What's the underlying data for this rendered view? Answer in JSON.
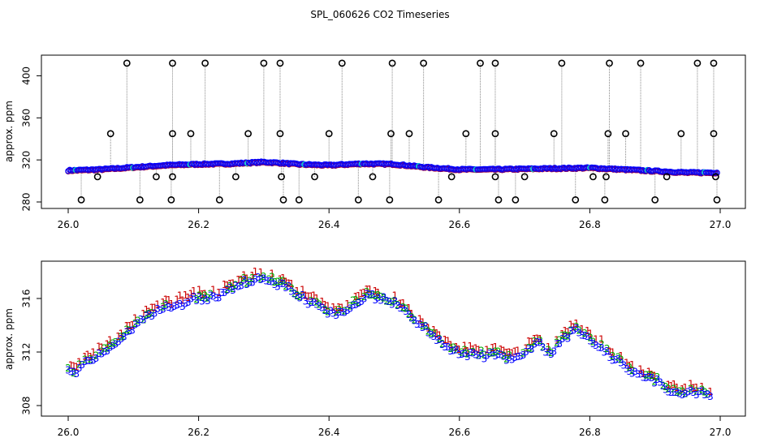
{
  "colors": {
    "series1": "#cc0000",
    "series2": "#00aa00",
    "series3": "#0000ff",
    "aux": "#00cccc",
    "spike": "#000000",
    "drop": "#888888"
  },
  "chart_data": [
    {
      "type": "scatter",
      "title": "SPL_060626  CO2 Timeseries",
      "xlabel": "",
      "ylabel": "approx. ppm",
      "xlim": [
        26.0,
        27.0
      ],
      "ylim": [
        280,
        415
      ],
      "xticks": [
        "26.0",
        "26.2",
        "26.4",
        "26.6",
        "26.8",
        "27.0"
      ],
      "yticks": [
        "280",
        "320",
        "360",
        "400"
      ],
      "baseline": [
        [
          26.0,
          310
        ],
        [
          26.05,
          311
        ],
        [
          26.1,
          313
        ],
        [
          26.15,
          315
        ],
        [
          26.2,
          316
        ],
        [
          26.25,
          316.5
        ],
        [
          26.3,
          318
        ],
        [
          26.33,
          317
        ],
        [
          26.35,
          316
        ],
        [
          26.4,
          315
        ],
        [
          26.45,
          316.5
        ],
        [
          26.5,
          316
        ],
        [
          26.55,
          313
        ],
        [
          26.6,
          311
        ],
        [
          26.65,
          311
        ],
        [
          26.7,
          311.5
        ],
        [
          26.75,
          312
        ],
        [
          26.8,
          312.5
        ],
        [
          26.85,
          311
        ],
        [
          26.9,
          309.5
        ],
        [
          26.95,
          308
        ],
        [
          26.99,
          308
        ]
      ],
      "outliers_high": [
        [
          26.09,
          412
        ],
        [
          26.16,
          412
        ],
        [
          26.21,
          412
        ],
        [
          26.3,
          412
        ],
        [
          26.325,
          412
        ],
        [
          26.42,
          412
        ],
        [
          26.497,
          412
        ],
        [
          26.545,
          412
        ],
        [
          26.632,
          412
        ],
        [
          26.655,
          412
        ],
        [
          26.757,
          412
        ],
        [
          26.83,
          412
        ],
        [
          26.878,
          412
        ],
        [
          26.965,
          412
        ],
        [
          26.99,
          412
        ]
      ],
      "outliers_mid": [
        [
          26.065,
          345
        ],
        [
          26.16,
          345
        ],
        [
          26.188,
          345
        ],
        [
          26.276,
          345
        ],
        [
          26.325,
          345
        ],
        [
          26.4,
          345
        ],
        [
          26.495,
          345
        ],
        [
          26.523,
          345
        ],
        [
          26.61,
          345
        ],
        [
          26.655,
          345
        ],
        [
          26.745,
          345
        ],
        [
          26.828,
          345
        ],
        [
          26.855,
          345
        ],
        [
          26.94,
          345
        ],
        [
          26.99,
          345
        ]
      ],
      "outliers_low": [
        [
          26.02,
          282
        ],
        [
          26.11,
          282
        ],
        [
          26.158,
          282
        ],
        [
          26.232,
          282
        ],
        [
          26.33,
          282
        ],
        [
          26.354,
          282
        ],
        [
          26.445,
          282
        ],
        [
          26.493,
          282
        ],
        [
          26.568,
          282
        ],
        [
          26.66,
          282
        ],
        [
          26.686,
          282
        ],
        [
          26.778,
          282
        ],
        [
          26.823,
          282
        ],
        [
          26.9,
          282
        ],
        [
          26.995,
          282
        ]
      ],
      "outliers_near": [
        [
          26.045,
          304
        ],
        [
          26.135,
          304
        ],
        [
          26.16,
          304
        ],
        [
          26.257,
          304
        ],
        [
          26.327,
          304
        ],
        [
          26.378,
          304
        ],
        [
          26.467,
          304
        ],
        [
          26.588,
          304
        ],
        [
          26.655,
          304
        ],
        [
          26.7,
          304
        ],
        [
          26.805,
          304
        ],
        [
          26.825,
          304
        ],
        [
          26.918,
          304
        ],
        [
          26.993,
          304
        ]
      ]
    },
    {
      "type": "scatter",
      "title": "",
      "xlabel": "",
      "ylabel": "approx. ppm",
      "xlim": [
        26.0,
        27.0
      ],
      "ylim": [
        307.5,
        318.6
      ],
      "xticks": [
        "26.0",
        "26.2",
        "26.4",
        "26.6",
        "26.8",
        "27.0"
      ],
      "yticks": [
        "308",
        "312",
        "316"
      ],
      "series": [
        {
          "name": "1",
          "glyph": "1",
          "offset": 0.45
        },
        {
          "name": "2",
          "glyph": "2",
          "offset": 0.15
        },
        {
          "name": "3",
          "glyph": "3",
          "offset": 0.0
        }
      ],
      "curve": [
        [
          26.0,
          310.8
        ],
        [
          26.01,
          310.4
        ],
        [
          26.02,
          310.9
        ],
        [
          26.04,
          311.5
        ],
        [
          26.06,
          312.2
        ],
        [
          26.08,
          313.0
        ],
        [
          26.1,
          313.8
        ],
        [
          26.12,
          314.5
        ],
        [
          26.14,
          315.2
        ],
        [
          26.16,
          315.4
        ],
        [
          26.18,
          315.6
        ],
        [
          26.2,
          316.0
        ],
        [
          26.22,
          316.0
        ],
        [
          26.24,
          316.4
        ],
        [
          26.26,
          316.8
        ],
        [
          26.28,
          317.4
        ],
        [
          26.29,
          317.6
        ],
        [
          26.31,
          317.3
        ],
        [
          26.33,
          317.0
        ],
        [
          26.35,
          316.2
        ],
        [
          26.38,
          315.6
        ],
        [
          26.4,
          315.0
        ],
        [
          26.42,
          314.8
        ],
        [
          26.44,
          315.6
        ],
        [
          26.46,
          316.2
        ],
        [
          26.48,
          316.0
        ],
        [
          26.5,
          315.6
        ],
        [
          26.52,
          314.8
        ],
        [
          26.55,
          313.6
        ],
        [
          26.58,
          312.4
        ],
        [
          26.6,
          311.8
        ],
        [
          26.63,
          311.7
        ],
        [
          26.65,
          311.9
        ],
        [
          26.68,
          311.4
        ],
        [
          26.7,
          311.8
        ],
        [
          26.72,
          312.8
        ],
        [
          26.74,
          311.8
        ],
        [
          26.76,
          313.0
        ],
        [
          26.78,
          313.6
        ],
        [
          26.8,
          313.0
        ],
        [
          26.82,
          312.2
        ],
        [
          26.85,
          311.0
        ],
        [
          26.88,
          310.2
        ],
        [
          26.9,
          309.8
        ],
        [
          26.92,
          309.2
        ],
        [
          26.94,
          308.8
        ],
        [
          26.96,
          309.0
        ],
        [
          26.98,
          308.8
        ]
      ]
    }
  ]
}
